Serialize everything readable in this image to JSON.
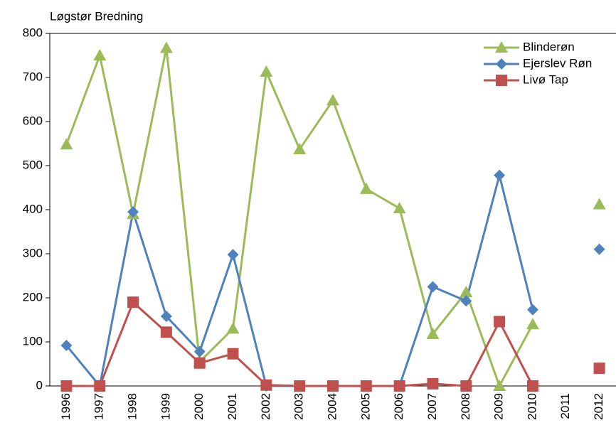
{
  "chart_data": {
    "type": "line",
    "title": "Løgstør Bredning",
    "categories": [
      "1996",
      "1997",
      "1998",
      "1999",
      "2000",
      "2001",
      "2002",
      "2003",
      "2004",
      "2005",
      "2006",
      "2007",
      "2008",
      "2009",
      "2010",
      "2011",
      "2012"
    ],
    "series": [
      {
        "name": "Blinderøn",
        "color": "#9bbb59",
        "marker": "triangle",
        "values": [
          548,
          750,
          390,
          767,
          55,
          130,
          713,
          537,
          648,
          447,
          403,
          118,
          213,
          0,
          140,
          null,
          412
        ]
      },
      {
        "name": "Ejerslev Røn",
        "color": "#4f81bd",
        "marker": "diamond",
        "values": [
          92,
          0,
          395,
          158,
          78,
          298,
          0,
          0,
          0,
          0,
          0,
          225,
          193,
          478,
          173,
          null,
          310
        ]
      },
      {
        "name": "Livø Tap",
        "color": "#c0504d",
        "marker": "square",
        "values": [
          0,
          0,
          190,
          122,
          52,
          73,
          2,
          0,
          0,
          0,
          0,
          5,
          0,
          146,
          0,
          null,
          40
        ]
      }
    ],
    "ylim": [
      0,
      800
    ],
    "yticks": [
      0,
      100,
      200,
      300,
      400,
      500,
      600,
      700,
      800
    ],
    "legend": "top-right"
  }
}
